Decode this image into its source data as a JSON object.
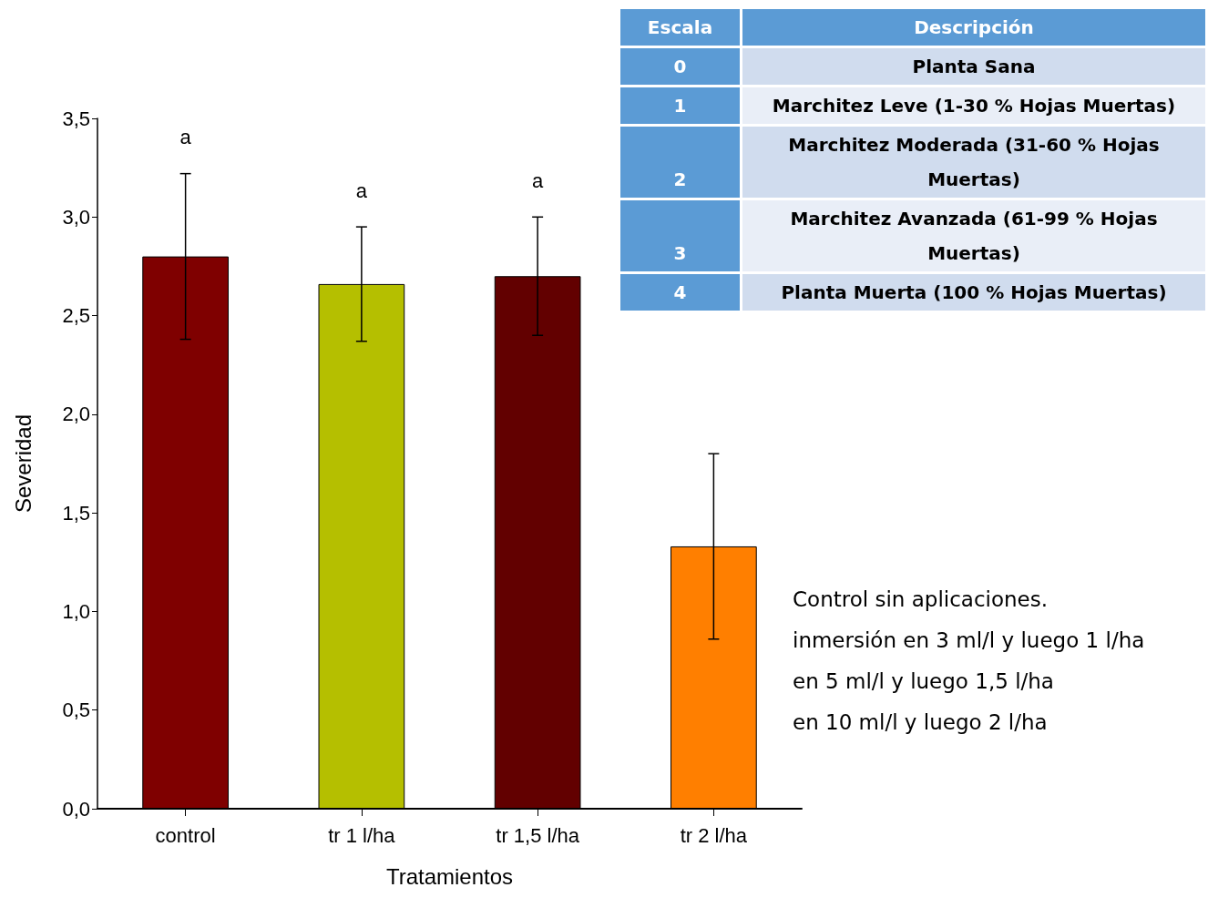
{
  "chart_data": {
    "type": "bar",
    "xlabel": "Tratamientos",
    "ylabel": "Severidad",
    "categories": [
      "control",
      "tr 1 l/ha",
      "tr 1,5 l/ha",
      "tr 2 l/ha"
    ],
    "values": [
      2.8,
      2.66,
      2.7,
      1.33
    ],
    "colors": [
      "#7f0000",
      "#b5bf00",
      "#620000",
      "#ff7f00"
    ],
    "errors": [
      0.42,
      0.29,
      0.3,
      0.47
    ],
    "ylim": [
      0,
      3.5
    ],
    "yticks": [
      {
        "value": 0,
        "label": "0,0"
      },
      {
        "value": 0.5,
        "label": "0,5"
      },
      {
        "value": 1,
        "label": "1,0"
      },
      {
        "value": 1.5,
        "label": "1,5"
      },
      {
        "value": 2,
        "label": "2,0"
      },
      {
        "value": 2.5,
        "label": "2,5"
      },
      {
        "value": 3,
        "label": "3,0"
      },
      {
        "value": 3.5,
        "label": "3,5"
      }
    ],
    "grid": false,
    "annotations": [
      "a",
      "a",
      "a",
      "Escala",
      "Descripción",
      "0",
      "Planta Sana",
      "1",
      "Marchitez Leve (1-30 % Hojas Muertas)",
      "2",
      "Marchitez Moderada (31-60 % Hojas Muertas)",
      "3",
      "Marchitez Avanzada (61-99 % Hojas Muertas)",
      "4",
      "Planta Muerta (100 % Hojas Muertas)",
      "Control  sin aplicaciones.",
      "inmersión en 3 ml/l y luego  1 l/ha",
      "en 5 ml/l  y luego 1,5 l/ha",
      "en 10 ml/l  y luego 2 l/ha"
    ]
  }
}
